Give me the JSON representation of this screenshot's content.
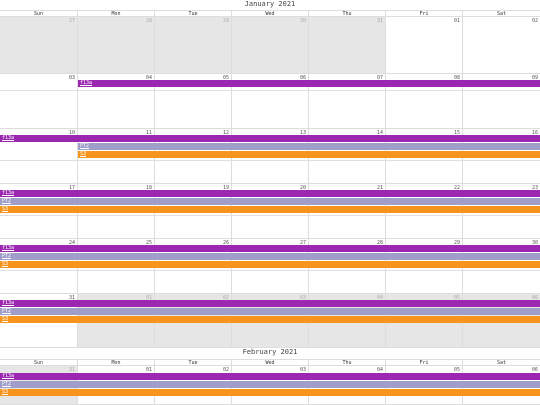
{
  "months": [
    {
      "title": "January 2021"
    },
    {
      "title": "February 2021"
    }
  ],
  "weekdays": [
    "Sun",
    "Mon",
    "Tue",
    "Wed",
    "Thu",
    "Fri",
    "Sat"
  ],
  "jan_weeks": [
    [
      "27",
      "28",
      "29",
      "30",
      "31",
      "01",
      "02"
    ],
    [
      "03",
      "04",
      "05",
      "06",
      "07",
      "08",
      "09"
    ],
    [
      "10",
      "11",
      "12",
      "13",
      "14",
      "15",
      "16"
    ],
    [
      "17",
      "18",
      "19",
      "20",
      "21",
      "22",
      "23"
    ],
    [
      "24",
      "25",
      "26",
      "27",
      "28",
      "29",
      "30"
    ],
    [
      "31",
      "01",
      "02",
      "03",
      "04",
      "05",
      "06"
    ]
  ],
  "feb_week": [
    "31",
    "01",
    "02",
    "03",
    "04",
    "05",
    "06"
  ],
  "events": {
    "purple": "f13a",
    "gray": "PT2",
    "orange": "S3"
  },
  "colors": {
    "purple": "#9c27b0",
    "gray": "#9e9ec8",
    "orange": "#f7941d",
    "other_month": "#e6e6e6"
  }
}
